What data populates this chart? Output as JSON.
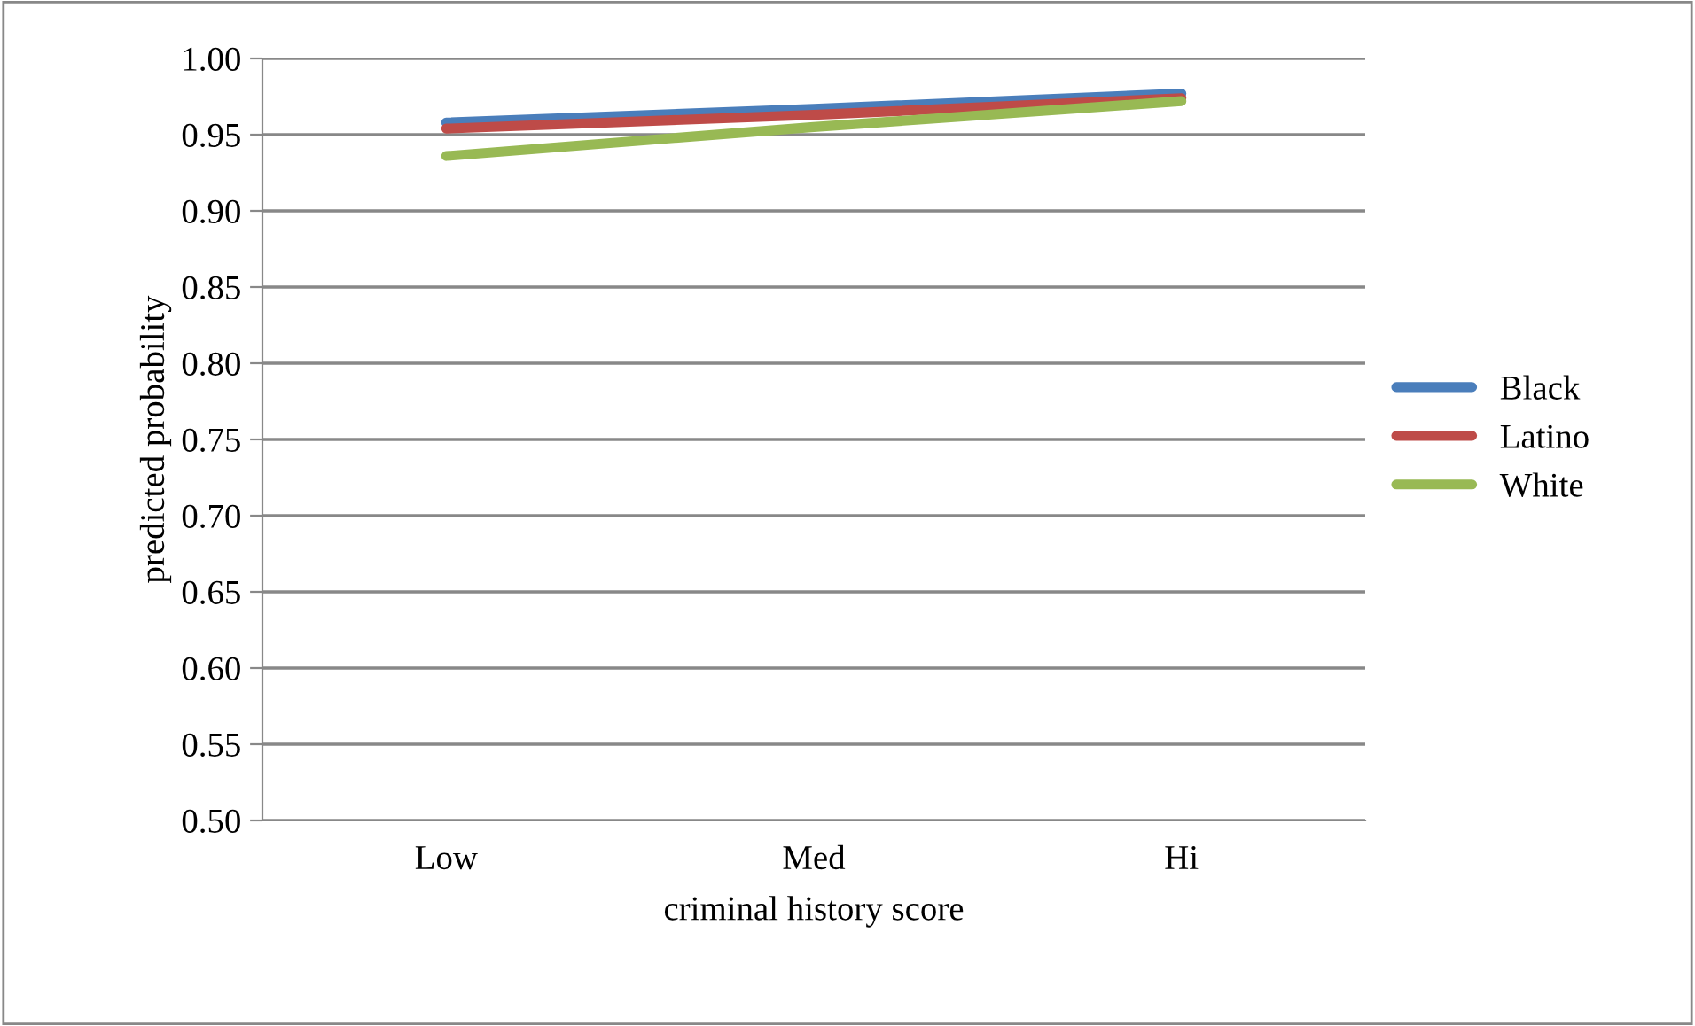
{
  "chart_data": {
    "type": "line",
    "xlabel": "criminal history score",
    "ylabel": "predicted probability",
    "categories": [
      "Low",
      "Med",
      "Hi"
    ],
    "series": [
      {
        "name": "Black",
        "color": "#4a7ebb",
        "values": [
          0.958,
          0.967,
          0.977
        ]
      },
      {
        "name": "Latino",
        "color": "#be4b48",
        "values": [
          0.954,
          0.963,
          0.974
        ]
      },
      {
        "name": "White",
        "color": "#98b954",
        "values": [
          0.936,
          0.955,
          0.972
        ]
      }
    ],
    "ylim": [
      0.5,
      1.0
    ],
    "yticks": [
      {
        "value": 0.5,
        "label": "0.50"
      },
      {
        "value": 0.55,
        "label": "0.55"
      },
      {
        "value": 0.6,
        "label": "0.60"
      },
      {
        "value": 0.65,
        "label": "0.65"
      },
      {
        "value": 0.7,
        "label": "0.70"
      },
      {
        "value": 0.75,
        "label": "0.75"
      },
      {
        "value": 0.8,
        "label": "0.80"
      },
      {
        "value": 0.85,
        "label": "0.85"
      },
      {
        "value": 0.9,
        "label": "0.90"
      },
      {
        "value": 0.95,
        "label": "0.95"
      },
      {
        "value": 1.0,
        "label": "1.00"
      }
    ],
    "grid": "y",
    "legend": "right",
    "marker": "none",
    "line_style": "solid"
  }
}
